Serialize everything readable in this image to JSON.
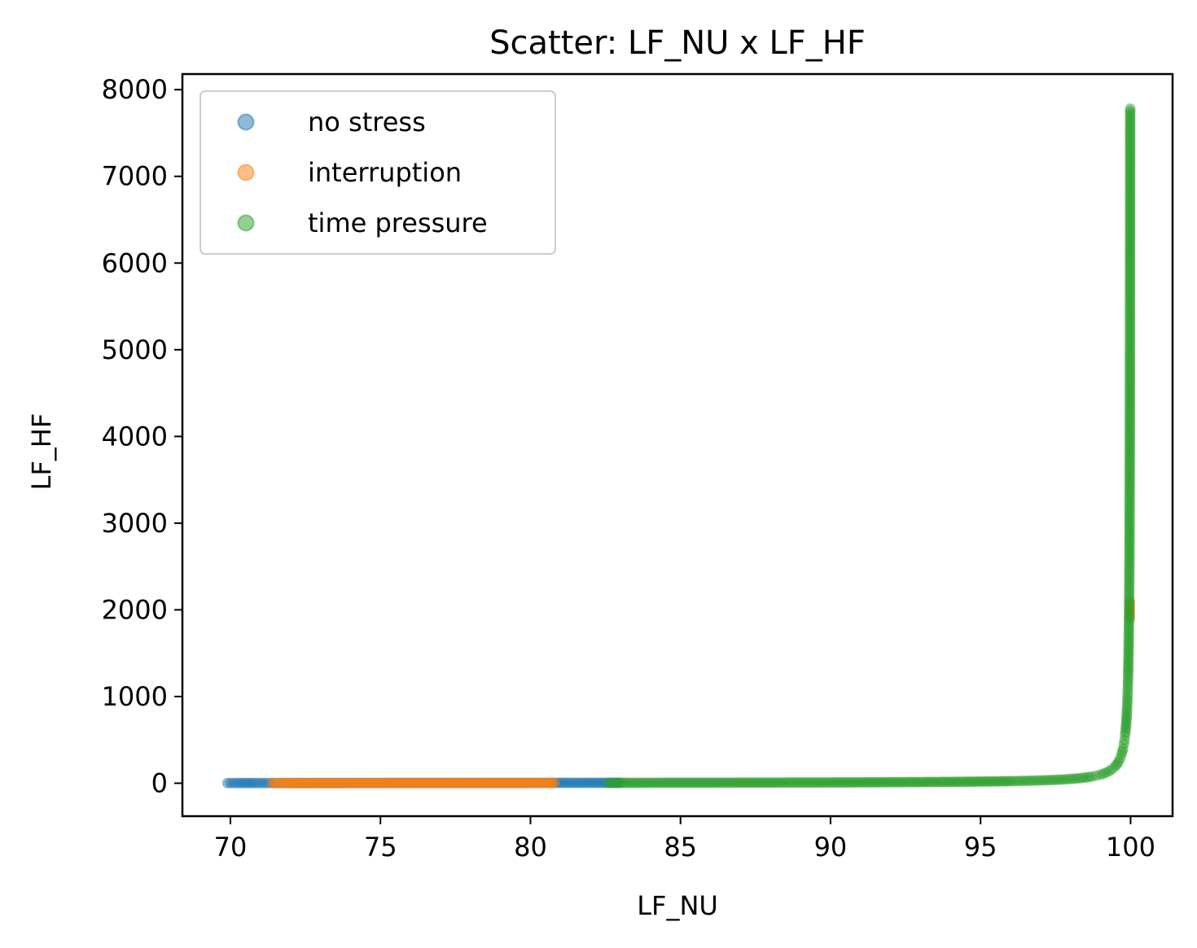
{
  "chart_data": {
    "type": "scatter",
    "title": "Scatter: LF_NU x LF_HF",
    "xlabel": "LF_NU",
    "ylabel": "LF_HF",
    "xlim": [
      68.4,
      101.4
    ],
    "ylim": [
      -380,
      8180
    ],
    "x_ticks": [
      70,
      75,
      80,
      85,
      90,
      95,
      100
    ],
    "y_ticks": [
      0,
      1000,
      2000,
      3000,
      4000,
      5000,
      6000,
      7000,
      8000
    ],
    "grid": false,
    "legend_position": "upper-left",
    "point_alpha": 0.5,
    "series": [
      {
        "name": "no stress",
        "color": "#1f77b4",
        "points": [
          [
            69.9,
            2.3
          ],
          [
            70.3,
            2.4
          ],
          [
            70.8,
            2.4
          ],
          [
            71.2,
            2.5
          ],
          [
            71.6,
            2.5
          ],
          [
            72.0,
            2.6
          ],
          [
            73.0,
            2.7
          ],
          [
            74.0,
            2.8
          ],
          [
            75.0,
            3.0
          ],
          [
            76.0,
            3.2
          ],
          [
            77.0,
            3.4
          ],
          [
            78.0,
            3.5
          ],
          [
            79.0,
            3.8
          ],
          [
            80.0,
            4.0
          ],
          [
            80.5,
            4.1
          ],
          [
            81.0,
            4.3
          ],
          [
            81.5,
            4.4
          ],
          [
            82.0,
            4.6
          ],
          [
            82.5,
            4.7
          ],
          [
            83.0,
            4.9
          ]
        ]
      },
      {
        "name": "interruption",
        "color": "#ff7f0e",
        "points": [
          [
            71.4,
            2.5
          ],
          [
            71.8,
            2.5
          ],
          [
            72.3,
            2.6
          ],
          [
            72.8,
            2.7
          ],
          [
            73.3,
            2.7
          ],
          [
            73.8,
            2.8
          ],
          [
            74.3,
            2.9
          ],
          [
            74.8,
            3.0
          ],
          [
            75.3,
            3.1
          ],
          [
            75.8,
            3.1
          ],
          [
            76.3,
            3.2
          ],
          [
            76.8,
            3.3
          ],
          [
            77.3,
            3.4
          ],
          [
            77.8,
            3.5
          ],
          [
            78.3,
            3.6
          ],
          [
            78.8,
            3.7
          ],
          [
            79.3,
            3.8
          ],
          [
            79.8,
            3.9
          ],
          [
            80.3,
            4.1
          ],
          [
            80.8,
            4.2
          ],
          [
            99.98,
            1900
          ],
          [
            99.98,
            2000
          ],
          [
            99.98,
            2100
          ]
        ]
      },
      {
        "name": "time pressure",
        "color": "#2ca02c",
        "points": [
          [
            82.6,
            4.8
          ],
          [
            83.0,
            4.9
          ],
          [
            83.5,
            5.1
          ],
          [
            84.0,
            5.3
          ],
          [
            84.5,
            5.5
          ],
          [
            85.0,
            5.7
          ],
          [
            85.5,
            5.9
          ],
          [
            86.0,
            6.1
          ],
          [
            86.5,
            6.4
          ],
          [
            87.0,
            6.7
          ],
          [
            87.5,
            7.0
          ],
          [
            88.0,
            7.3
          ],
          [
            88.5,
            7.7
          ],
          [
            89.0,
            8.1
          ],
          [
            89.5,
            8.5
          ],
          [
            90.0,
            9.0
          ],
          [
            90.5,
            9.5
          ],
          [
            91.0,
            10.1
          ],
          [
            91.5,
            10.8
          ],
          [
            92.0,
            11.5
          ],
          [
            92.5,
            12.3
          ],
          [
            93.0,
            13.3
          ],
          [
            93.5,
            14.4
          ],
          [
            94.0,
            15.7
          ],
          [
            94.5,
            17.2
          ],
          [
            95.0,
            19.0
          ],
          [
            95.5,
            21.2
          ],
          [
            96.0,
            24.0
          ],
          [
            96.3,
            25.9
          ],
          [
            96.6,
            28.4
          ],
          [
            96.9,
            31.3
          ],
          [
            97.2,
            34.7
          ],
          [
            97.5,
            39.0
          ],
          [
            97.7,
            42.5
          ],
          [
            97.9,
            46.6
          ],
          [
            98.1,
            51.6
          ],
          [
            98.3,
            57.8
          ],
          [
            98.5,
            65.7
          ],
          [
            98.7,
            75.9
          ],
          [
            98.85,
            85.6
          ],
          [
            99.0,
            99.0
          ],
          [
            99.1,
            110.1
          ],
          [
            99.2,
            124.0
          ],
          [
            99.3,
            141.9
          ],
          [
            99.4,
            165.7
          ],
          [
            99.5,
            199.0
          ],
          [
            99.55,
            221.2
          ],
          [
            99.6,
            249.0
          ],
          [
            99.65,
            284.7
          ],
          [
            99.7,
            332.3
          ],
          [
            99.75,
            399.0
          ],
          [
            99.78,
            453.5
          ],
          [
            99.8,
            499.0
          ],
          [
            99.82,
            554.6
          ],
          [
            99.84,
            624.0
          ],
          [
            99.86,
            713.3
          ],
          [
            99.88,
            832.3
          ],
          [
            99.9,
            999.0
          ],
          [
            99.91,
            1110.1
          ],
          [
            99.92,
            1249.0
          ],
          [
            99.93,
            1427.6
          ],
          [
            99.94,
            1665.7
          ],
          [
            99.95,
            1999.0
          ],
          [
            99.955,
            2221.2
          ],
          [
            99.96,
            2499.0
          ],
          [
            99.965,
            2856.1
          ],
          [
            99.97,
            3332.3
          ],
          [
            99.975,
            3999.0
          ],
          [
            99.978,
            4544.5
          ],
          [
            99.98,
            4999.0
          ],
          [
            99.982,
            5554.6
          ],
          [
            99.984,
            6249.0
          ],
          [
            99.986,
            7141.9
          ],
          [
            99.987,
            7690.3
          ],
          [
            99.988,
            7780
          ]
        ]
      }
    ]
  }
}
